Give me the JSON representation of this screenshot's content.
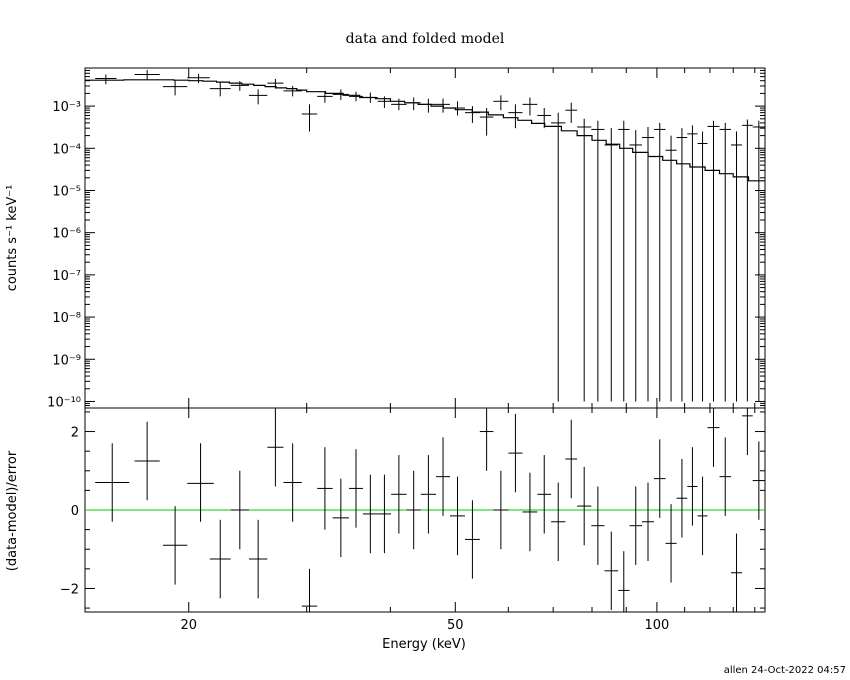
{
  "chart_data": [
    {
      "type": "line",
      "title": "data and folded model",
      "ylabel": "counts s⁻¹ keV⁻¹",
      "xscale": "log",
      "yscale": "log",
      "xlim": [
        14,
        145
      ],
      "ylim": [
        7e-11,
        0.008
      ],
      "y_tick_values": [
        1e-10,
        1e-09,
        1e-08,
        1e-07,
        1e-06,
        1e-05,
        0.0001,
        0.001
      ],
      "y_tick_labels": [
        "10⁻¹⁰",
        "10⁻⁹",
        "10⁻⁸",
        "10⁻⁷",
        "10⁻⁶",
        "10⁻⁵",
        "10⁻⁴",
        "10⁻³"
      ],
      "series": [
        {
          "kind": "data-with-errors",
          "color": "#000000",
          "points": [
            [
              14.5,
              15.6,
              0.0045,
              0.0056,
              0.0033
            ],
            [
              16.6,
              18.1,
              0.0056,
              0.0072,
              0.0042
            ],
            [
              18.3,
              19.9,
              0.0029,
              0.0041,
              0.0018
            ],
            [
              19.9,
              21.5,
              0.0047,
              0.0058,
              0.0035
            ],
            [
              21.5,
              23.1,
              0.0026,
              0.0036,
              0.0017
            ],
            [
              23.1,
              24.6,
              0.0031,
              0.0039,
              0.0023
            ],
            [
              24.6,
              26.2,
              0.0018,
              0.0025,
              0.0011
            ],
            [
              26.2,
              27.7,
              0.0035,
              0.0044,
              0.0026
            ],
            [
              27.7,
              29.5,
              0.0023,
              0.003,
              0.0017
            ],
            [
              29.5,
              31.1,
              0.00065,
              0.0011,
              0.00025
            ],
            [
              31.1,
              32.8,
              0.0017,
              0.0022,
              0.0012
            ],
            [
              32.8,
              34.7,
              0.0019,
              0.0025,
              0.0014
            ],
            [
              34.7,
              36.4,
              0.0017,
              0.0022,
              0.0013
            ],
            [
              36.4,
              38.3,
              0.0016,
              0.0021,
              0.0012
            ],
            [
              38.3,
              40.1,
              0.0013,
              0.0017,
              0.0009
            ],
            [
              40.1,
              42.3,
              0.0011,
              0.0015,
              0.0008
            ],
            [
              42.3,
              44.4,
              0.0012,
              0.0016,
              0.0008
            ],
            [
              44.4,
              46.8,
              0.0011,
              0.0015,
              0.0007
            ],
            [
              46.8,
              49.1,
              0.0011,
              0.0015,
              0.0007
            ],
            [
              49.1,
              51.7,
              0.0009,
              0.0013,
              0.0006
            ],
            [
              51.7,
              54.4,
              0.0007,
              0.001,
              0.0004
            ],
            [
              54.4,
              57.0,
              0.00055,
              0.0009,
              0.0002
            ],
            [
              57.0,
              60.0,
              0.0013,
              0.0018,
              0.0008
            ],
            [
              60.0,
              63.0,
              0.0007,
              0.0011,
              0.0003
            ],
            [
              63.0,
              66.3,
              0.0011,
              0.0016,
              0.0006
            ],
            [
              66.3,
              69.5,
              0.0006,
              0.0009,
              0.0003
            ],
            [
              69.5,
              73.0,
              0.0004,
              0.0007,
              1e-10
            ],
            [
              73.0,
              76.0,
              0.0008,
              0.0012,
              0.0004
            ],
            [
              76.0,
              79.8,
              0.00032,
              0.0005,
              1e-10
            ],
            [
              79.8,
              83.5,
              0.00028,
              0.00045,
              1e-10
            ],
            [
              83.5,
              87.5,
              0.00012,
              0.0003,
              1e-10
            ],
            [
              87.5,
              91.0,
              0.00028,
              0.00045,
              1e-10
            ],
            [
              91.0,
              95.0,
              0.00012,
              0.00027,
              1e-10
            ],
            [
              95.0,
              99.0,
              0.00018,
              0.00032,
              1e-10
            ],
            [
              99.0,
              103.0,
              0.00028,
              0.0004,
              1e-10
            ],
            [
              103.0,
              107.0,
              9e-05,
              0.0002,
              1e-10
            ],
            [
              107.0,
              111.0,
              0.00018,
              0.0003,
              1e-10
            ],
            [
              111.0,
              115.0,
              0.00022,
              0.00035,
              1e-10
            ],
            [
              115.0,
              119.0,
              0.00013,
              0.00025,
              1e-10
            ],
            [
              119.0,
              124.0,
              0.00033,
              0.00045,
              1e-10
            ],
            [
              124.0,
              129.0,
              0.00028,
              0.0004,
              1e-10
            ],
            [
              129.0,
              134.0,
              0.00012,
              0.00025,
              1e-10
            ],
            [
              134.0,
              139.0,
              0.00035,
              0.00048,
              1e-10
            ],
            [
              139.0,
              145.0,
              0.00032,
              0.00045,
              1e-10
            ]
          ]
        },
        {
          "kind": "folded-model-step",
          "color": "#000000",
          "edges": [
            14,
            15,
            16,
            17,
            18,
            19,
            20,
            21,
            22,
            23,
            24,
            25,
            26,
            27,
            28,
            29,
            30,
            32,
            34,
            36,
            38,
            40,
            42,
            44,
            46,
            48,
            50,
            53,
            56,
            59,
            62,
            65,
            68,
            72,
            76,
            80,
            84,
            88,
            92,
            97,
            102,
            107,
            112,
            118,
            124,
            130,
            137,
            145
          ],
          "values": [
            0.0041,
            0.0041,
            0.0042,
            0.0042,
            0.0042,
            0.0041,
            0.004,
            0.0039,
            0.0037,
            0.0035,
            0.0033,
            0.0031,
            0.0029,
            0.0027,
            0.0026,
            0.0024,
            0.0022,
            0.002,
            0.0018,
            0.0016,
            0.0015,
            0.0013,
            0.0012,
            0.0011,
            0.001,
            0.0009,
            0.00082,
            0.00072,
            0.00062,
            0.00053,
            0.00046,
            0.00039,
            0.00033,
            0.00026,
            0.0002,
            0.000155,
            0.000125,
            0.0001,
            8e-05,
            6.4e-05,
            5.2e-05,
            4.3e-05,
            3.6e-05,
            3e-05,
            2.5e-05,
            2.1e-05,
            1.7e-05
          ]
        }
      ]
    },
    {
      "type": "scatter",
      "xlabel": "Energy (keV)",
      "ylabel": "(data-model)/error",
      "xscale": "log",
      "xlim": [
        14,
        145
      ],
      "ylim": [
        -2.6,
        2.6
      ],
      "y_tick_values": [
        -2,
        0,
        2
      ],
      "y_tick_labels": [
        "−2",
        "0",
        "2"
      ],
      "x_tick_values": [
        20,
        50,
        100
      ],
      "x_tick_labels": [
        "20",
        "50",
        "100"
      ],
      "zero_line_color": "#00cc00",
      "series": [
        {
          "kind": "residuals-with-errors",
          "color": "#000000",
          "points": [
            [
              14.5,
              16.3,
              0.7,
              1.7,
              -0.3
            ],
            [
              16.6,
              18.1,
              1.25,
              2.25,
              0.25
            ],
            [
              18.3,
              19.9,
              -0.9,
              0.1,
              -1.9
            ],
            [
              19.9,
              21.8,
              0.68,
              1.7,
              -0.3
            ],
            [
              21.5,
              23.1,
              -1.25,
              -0.25,
              -2.25
            ],
            [
              23.1,
              24.6,
              0.0,
              1.0,
              -1.0
            ],
            [
              24.6,
              26.2,
              -1.25,
              -0.25,
              -2.25
            ],
            [
              26.2,
              27.7,
              1.6,
              2.6,
              0.6
            ],
            [
              27.7,
              29.5,
              0.7,
              1.7,
              -0.3
            ],
            [
              29.5,
              31.1,
              -2.45,
              -1.5,
              -2.6
            ],
            [
              31.1,
              32.8,
              0.55,
              1.6,
              -0.5
            ],
            [
              32.8,
              34.7,
              -0.2,
              0.8,
              -1.2
            ],
            [
              34.7,
              36.4,
              0.55,
              1.55,
              -0.45
            ],
            [
              36.4,
              38.3,
              -0.1,
              0.9,
              -1.1
            ],
            [
              38.3,
              40.1,
              -0.1,
              0.9,
              -1.1
            ],
            [
              40.1,
              42.3,
              0.4,
              1.4,
              -0.6
            ],
            [
              42.3,
              44.4,
              0.0,
              1.0,
              -1.0
            ],
            [
              44.4,
              46.8,
              0.4,
              1.4,
              -0.6
            ],
            [
              46.8,
              49.1,
              0.85,
              1.85,
              -0.15
            ],
            [
              49.1,
              51.7,
              -0.15,
              0.85,
              -1.15
            ],
            [
              51.7,
              54.4,
              -0.75,
              0.25,
              -1.75
            ],
            [
              54.4,
              57.0,
              2.0,
              2.6,
              1.0
            ],
            [
              57.0,
              60.0,
              0.0,
              1.0,
              -1.0
            ],
            [
              60.0,
              63.0,
              1.45,
              2.45,
              0.45
            ],
            [
              63.0,
              66.3,
              -0.05,
              0.95,
              -1.05
            ],
            [
              66.3,
              69.5,
              0.4,
              1.4,
              -0.6
            ],
            [
              69.5,
              73.0,
              -0.3,
              0.7,
              -1.3
            ],
            [
              73.0,
              76.0,
              1.3,
              2.3,
              0.3
            ],
            [
              76.0,
              79.8,
              0.1,
              1.1,
              -0.9
            ],
            [
              79.8,
              83.5,
              -0.4,
              0.6,
              -1.4
            ],
            [
              83.5,
              87.5,
              -1.55,
              -0.55,
              -2.55
            ],
            [
              87.5,
              91.0,
              -2.05,
              -1.05,
              -2.6
            ],
            [
              91.0,
              95.0,
              -0.4,
              0.6,
              -1.4
            ],
            [
              95.0,
              99.0,
              -0.3,
              0.7,
              -1.3
            ],
            [
              99.0,
              103.0,
              0.8,
              1.8,
              -0.2
            ],
            [
              103.0,
              107.0,
              -0.85,
              0.15,
              -1.85
            ],
            [
              107.0,
              111.0,
              0.3,
              1.3,
              -0.7
            ],
            [
              111.0,
              115.0,
              0.6,
              1.6,
              -0.4
            ],
            [
              115.0,
              119.0,
              -0.15,
              0.85,
              -1.15
            ],
            [
              119.0,
              124.0,
              2.1,
              2.6,
              1.1
            ],
            [
              124.0,
              129.0,
              0.85,
              1.85,
              -0.15
            ],
            [
              129.0,
              134.0,
              -1.6,
              -0.6,
              -2.6
            ],
            [
              134.0,
              139.0,
              2.4,
              2.6,
              1.4
            ],
            [
              139.0,
              145.0,
              0.75,
              1.75,
              -0.25
            ]
          ]
        }
      ]
    }
  ],
  "footer": {
    "stamp": "allen 24-Oct-2022 04:57"
  }
}
